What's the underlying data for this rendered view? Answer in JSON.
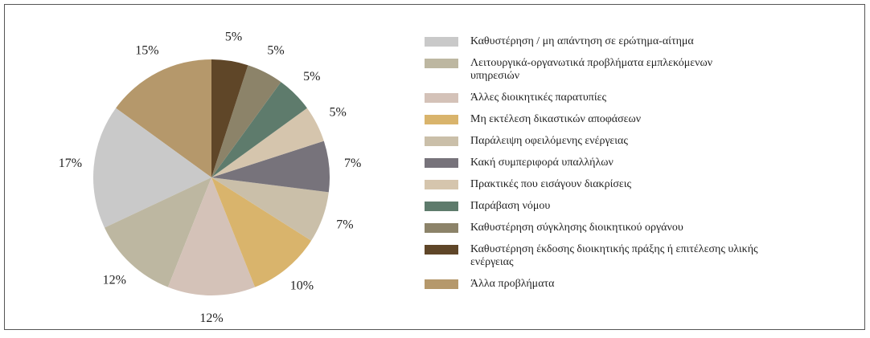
{
  "chart_data": {
    "type": "pie",
    "categories": [
      "Καθυστέρηση / μη απάντηση σε ερώτημα-αίτημα",
      "Λειτουργικά-οργανωτικά προβλήματα εμπλεκόμενων υπηρεσιών",
      "Άλλες διοικητικές παρατυπίες",
      "Μη εκτέλεση δικαστικών αποφάσεων",
      "Παράλειψη οφειλόμενης ενέργειας",
      "Κακή συμπεριφορά υπαλλήλων",
      "Πρακτικές που εισάγουν διακρίσεις",
      "Παράβαση νόμου",
      "Καθυστέρηση σύγκλησης διοικητικού οργάνου",
      "Καθυστέρηση έκδοσης διοικητικής πράξης ή επιτέλεσης υλικής ενέργειας",
      "Άλλα προβλήματα"
    ],
    "values": [
      17,
      12,
      12,
      10,
      7,
      7,
      5,
      5,
      5,
      5,
      15
    ],
    "value_labels": [
      "17%",
      "12%",
      "12%",
      "10%",
      "7%",
      "7%",
      "5%",
      "5%",
      "5%",
      "5%",
      "15%"
    ],
    "colors": [
      "#c9c9c9",
      "#bdb7a1",
      "#d4c2b8",
      "#d9b46c",
      "#cabfa9",
      "#77737b",
      "#d5c5ad",
      "#5e7b6c",
      "#8c8369",
      "#5f4628",
      "#b5986b"
    ],
    "legend": "right"
  }
}
